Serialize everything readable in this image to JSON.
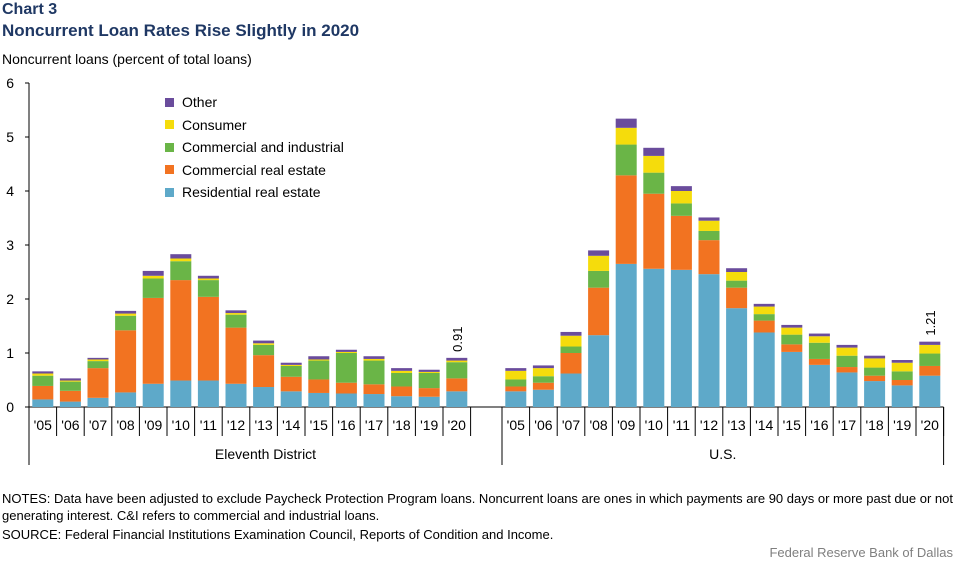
{
  "header": {
    "chart_label": "Chart 3",
    "title": "Noncurrent Loan Rates Rise Slightly in 2020",
    "unit_label": "Noncurrent  loans (percent of total loans)"
  },
  "footer": {
    "notes": "NOTES: Data have been adjusted to exclude Paycheck Protection Program loans. Noncurrent loans are ones in which payments are 90 days or more past due or not generating interest. C&I refers to commercial and industrial loans.",
    "source": "SOURCE: Federal Financial Institutions Examination Council, Reports of Condition and Income.",
    "credit": "Federal Reserve Bank of Dallas"
  },
  "colors": {
    "Residential real estate": "#5ea9c9",
    "Commercial real estate": "#f27321",
    "Commercial and industrial": "#6ab547",
    "Consumer": "#f5dc0c",
    "Other": "#6a4c9c"
  },
  "chart_data": {
    "type": "bar",
    "stacked": true,
    "ylabel": "Noncurrent  loans (percent of total loans)",
    "ylim": [
      0,
      6
    ],
    "yticks": [
      "0",
      "1",
      "2",
      "3",
      "4",
      "5",
      "6"
    ],
    "legend_order": [
      "Other",
      "Consumer",
      "Commercial and industrial",
      "Commercial real estate",
      "Residential real estate"
    ],
    "groups": [
      {
        "name": "Eleventh District",
        "categories": [
          "'05",
          "'06",
          "'07",
          "'08",
          "'09",
          "'10",
          "'11",
          "'12",
          "'13",
          "'14",
          "'15",
          "'16",
          "'17",
          "'18",
          "'19",
          "'20"
        ],
        "series": [
          {
            "name": "Residential real estate",
            "values": [
              0.14,
              0.1,
              0.17,
              0.27,
              0.43,
              0.49,
              0.49,
              0.43,
              0.37,
              0.29,
              0.26,
              0.25,
              0.24,
              0.2,
              0.19,
              0.29
            ]
          },
          {
            "name": "Commercial real estate",
            "values": [
              0.25,
              0.2,
              0.55,
              1.15,
              1.59,
              1.86,
              1.55,
              1.04,
              0.59,
              0.27,
              0.25,
              0.2,
              0.18,
              0.18,
              0.16,
              0.24
            ]
          },
          {
            "name": "Commercial and industrial",
            "values": [
              0.19,
              0.17,
              0.13,
              0.27,
              0.36,
              0.35,
              0.31,
              0.24,
              0.19,
              0.2,
              0.35,
              0.55,
              0.44,
              0.25,
              0.28,
              0.3
            ]
          },
          {
            "name": "Consumer",
            "values": [
              0.04,
              0.02,
              0.03,
              0.04,
              0.05,
              0.05,
              0.03,
              0.03,
              0.03,
              0.02,
              0.02,
              0.02,
              0.03,
              0.04,
              0.02,
              0.03
            ]
          },
          {
            "name": "Other",
            "values": [
              0.04,
              0.04,
              0.03,
              0.05,
              0.09,
              0.08,
              0.05,
              0.05,
              0.05,
              0.04,
              0.06,
              0.04,
              0.05,
              0.05,
              0.04,
              0.05
            ]
          }
        ],
        "annotation": {
          "index": 15,
          "text": "0.91"
        }
      },
      {
        "name": "U.S.",
        "categories": [
          "'05",
          "'06",
          "'07",
          "'08",
          "'09",
          "'10",
          "'11",
          "'12",
          "'13",
          "'14",
          "'15",
          "'16",
          "'17",
          "'18",
          "'19",
          "'20"
        ],
        "series": [
          {
            "name": "Residential real estate",
            "values": [
              0.29,
              0.32,
              0.62,
              1.33,
              2.65,
              2.56,
              2.54,
              2.46,
              1.83,
              1.38,
              1.02,
              0.78,
              0.64,
              0.48,
              0.4,
              0.58
            ]
          },
          {
            "name": "Commercial real estate",
            "values": [
              0.09,
              0.13,
              0.38,
              0.88,
              1.64,
              1.39,
              1.0,
              0.63,
              0.38,
              0.22,
              0.14,
              0.11,
              0.1,
              0.1,
              0.1,
              0.18
            ]
          },
          {
            "name": "Commercial and industrial",
            "values": [
              0.13,
              0.12,
              0.12,
              0.31,
              0.57,
              0.39,
              0.23,
              0.17,
              0.13,
              0.12,
              0.18,
              0.3,
              0.21,
              0.15,
              0.16,
              0.23
            ]
          },
          {
            "name": "Consumer",
            "values": [
              0.16,
              0.15,
              0.2,
              0.28,
              0.31,
              0.31,
              0.23,
              0.19,
              0.16,
              0.14,
              0.13,
              0.12,
              0.15,
              0.17,
              0.16,
              0.16
            ]
          },
          {
            "name": "Other",
            "values": [
              0.05,
              0.05,
              0.07,
              0.1,
              0.17,
              0.15,
              0.09,
              0.06,
              0.07,
              0.05,
              0.05,
              0.05,
              0.05,
              0.05,
              0.05,
              0.06
            ]
          }
        ],
        "annotation": {
          "index": 15,
          "text": "1.21"
        }
      }
    ]
  }
}
